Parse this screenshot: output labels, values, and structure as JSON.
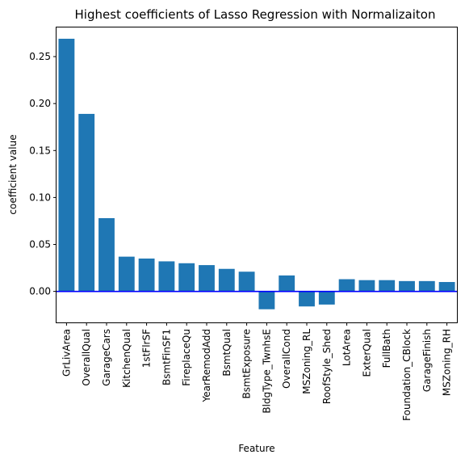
{
  "chart_data": {
    "type": "bar",
    "title": "Highest coefficients of Lasso Regression with Normalizaiton",
    "xlabel": "Feature",
    "ylabel": "coefficient value",
    "ylim": [
      -0.033,
      0.281
    ],
    "yticks": [
      "0.00",
      "0.05",
      "0.10",
      "0.15",
      "0.20",
      "0.25"
    ],
    "ytick_values": [
      0.0,
      0.05,
      0.1,
      0.15,
      0.2,
      0.25
    ],
    "categories": [
      "GrLivArea",
      "OverallQual",
      "GarageCars",
      "KitchenQual",
      "1stFlrSF",
      "BsmtFinSF1",
      "FireplaceQu",
      "YearRemodAdd",
      "BsmtQual",
      "BsmtExposure",
      "BldgType_TwnhsE",
      "OverallCond",
      "MSZoning_RL",
      "RoofStyle_Shed",
      "LotArea",
      "ExterQual",
      "FullBath",
      "Foundation_CBlock",
      "GarageFinish",
      "MSZoning_RH"
    ],
    "values": [
      0.269,
      0.189,
      0.078,
      0.037,
      0.035,
      0.032,
      0.03,
      0.028,
      0.024,
      0.021,
      -0.019,
      0.017,
      -0.016,
      -0.014,
      0.013,
      0.012,
      0.012,
      0.011,
      0.011,
      0.01
    ],
    "bar_color": "#1f77b4",
    "zero_line_color": "#0000ff",
    "grid": false,
    "legend": false
  }
}
